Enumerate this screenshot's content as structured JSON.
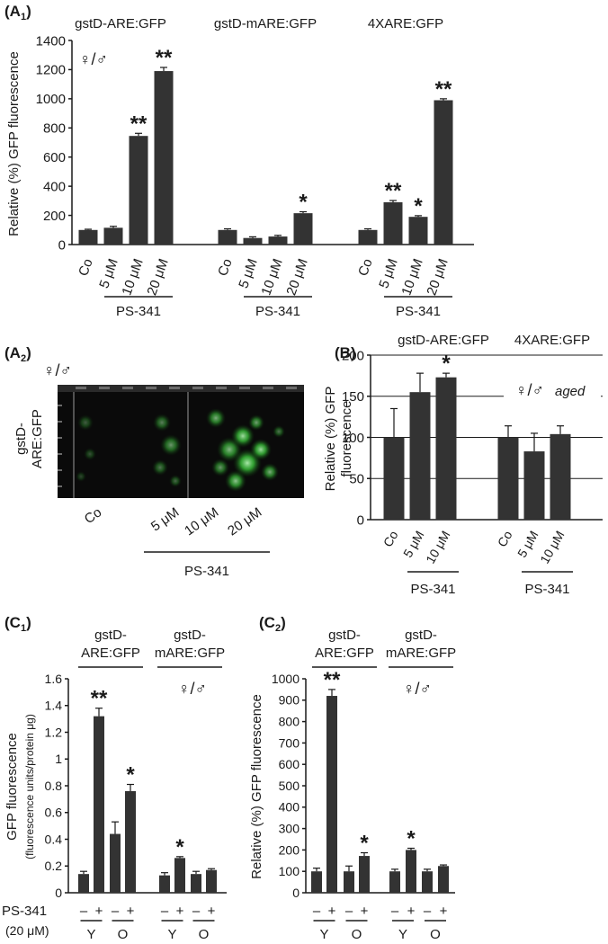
{
  "chart_data": [
    {
      "panel": "(A1)",
      "type": "bar",
      "ylabel": "Relative (%) GFP fluorescence",
      "ylim": [
        0,
        1400
      ],
      "yticks": [
        0,
        200,
        400,
        600,
        800,
        1000,
        1200,
        1400
      ],
      "symbol": "♀/♂",
      "groups": [
        {
          "title": "gstD-ARE:GFP",
          "categories": [
            "Co",
            "5 μM",
            "10 μM",
            "20 μM"
          ],
          "values": [
            100,
            115,
            745,
            1190
          ],
          "errors": [
            5,
            10,
            18,
            25
          ],
          "stars": [
            "",
            "",
            "**",
            "**"
          ],
          "bracket": "PS-341"
        },
        {
          "title": "gstD-mARE:GFP",
          "categories": [
            "Co",
            "5 μM",
            "10 μM",
            "20 μM"
          ],
          "values": [
            100,
            45,
            55,
            215
          ],
          "errors": [
            8,
            8,
            8,
            10
          ],
          "stars": [
            "",
            "",
            "",
            "*"
          ],
          "bracket": "PS-341"
        },
        {
          "title": "4XARE:GFP",
          "categories": [
            "Co",
            "5 μM",
            "10 μM",
            "20 μM"
          ],
          "values": [
            100,
            290,
            190,
            990
          ],
          "errors": [
            8,
            12,
            8,
            10
          ],
          "stars": [
            "",
            "**",
            "*",
            "**"
          ],
          "bracket": "PS-341"
        }
      ]
    },
    {
      "panel": "(A2)",
      "type": "image",
      "symbol": "♀/♂",
      "ylabel": [
        "gstD-",
        "ARE:GFP"
      ],
      "categories": [
        "Co",
        "5 μM",
        "10 μM",
        "20 μM"
      ],
      "bracket": "PS-341"
    },
    {
      "panel": "(B)",
      "type": "bar",
      "ylabel": [
        "Relative (%) GFP",
        "fluorescence"
      ],
      "ylim": [
        0,
        200
      ],
      "yticks": [
        0,
        50,
        100,
        150,
        200
      ],
      "grid": true,
      "annotation": [
        "♀/♂",
        "aged"
      ],
      "groups": [
        {
          "title": "gstD-ARE:GFP",
          "categories": [
            "Co",
            "5 μM",
            "10 μM"
          ],
          "values": [
            100,
            155,
            173
          ],
          "errors": [
            35,
            23,
            5
          ],
          "stars": [
            "",
            "",
            "*"
          ],
          "bracket": "PS-341"
        },
        {
          "title": "4XARE:GFP",
          "categories": [
            "Co",
            "5 μM",
            "10 μM"
          ],
          "values": [
            100,
            83,
            104
          ],
          "errors": [
            14,
            22,
            10
          ],
          "stars": [
            "",
            "",
            ""
          ],
          "bracket": "PS-341"
        }
      ]
    },
    {
      "panel": "(C1)",
      "type": "bar",
      "ylabel": [
        "GFP fluorescence",
        "(fluorescence units/protein μg)"
      ],
      "ylim": [
        0,
        1.6
      ],
      "yticks": [
        "0",
        "0.2",
        "0.4",
        "0.6",
        "0.8",
        "1",
        "1.2",
        "1.4",
        "1.6"
      ],
      "symbol": "♀/♂",
      "row_labels": [
        "PS-341",
        "(20 μM)"
      ],
      "groups": [
        {
          "title": [
            "gstD-",
            "ARE:GFP"
          ],
          "signs": [
            "–",
            "+",
            "–",
            "+"
          ],
          "ages": [
            "Y",
            "O"
          ],
          "values": [
            0.14,
            1.32,
            0.44,
            0.76
          ],
          "errors": [
            0.02,
            0.06,
            0.09,
            0.05
          ],
          "stars": [
            "",
            "**",
            "",
            "*"
          ]
        },
        {
          "title": [
            "gstD-",
            "mARE:GFP"
          ],
          "signs": [
            "–",
            "+",
            "–",
            "+"
          ],
          "ages": [
            "Y",
            "O"
          ],
          "values": [
            0.13,
            0.26,
            0.14,
            0.17
          ],
          "errors": [
            0.02,
            0.01,
            0.02,
            0.01
          ],
          "stars": [
            "",
            "*",
            "",
            ""
          ]
        }
      ]
    },
    {
      "panel": "(C2)",
      "type": "bar",
      "ylabel": "Relative (%) GFP fluorescence",
      "ylim": [
        0,
        1000
      ],
      "yticks": [
        "0",
        "100",
        "200",
        "300",
        "400",
        "500",
        "600",
        "700",
        "800",
        "900",
        "1000"
      ],
      "symbol": "♀/♂",
      "groups": [
        {
          "title": [
            "gstD-",
            "ARE:GFP"
          ],
          "signs": [
            "–",
            "+",
            "–",
            "+"
          ],
          "ages": [
            "Y",
            "O"
          ],
          "values": [
            100,
            920,
            100,
            172
          ],
          "errors": [
            15,
            30,
            25,
            15
          ],
          "stars": [
            "",
            "**",
            "",
            "*"
          ]
        },
        {
          "title": [
            "gstD-",
            "mARE:GFP"
          ],
          "signs": [
            "–",
            "+",
            "–",
            "+"
          ],
          "ages": [
            "Y",
            "O"
          ],
          "values": [
            100,
            200,
            100,
            125
          ],
          "errors": [
            10,
            8,
            10,
            5
          ],
          "stars": [
            "",
            "*",
            "",
            ""
          ]
        }
      ]
    }
  ],
  "colors": {
    "bar": "#333333",
    "axis": "#1a1a1a",
    "symbol": "#777777",
    "micrograph_bg": "#0a0a0a",
    "fluorescence": "#4ee04e",
    "frame": "#9a9a9a"
  }
}
